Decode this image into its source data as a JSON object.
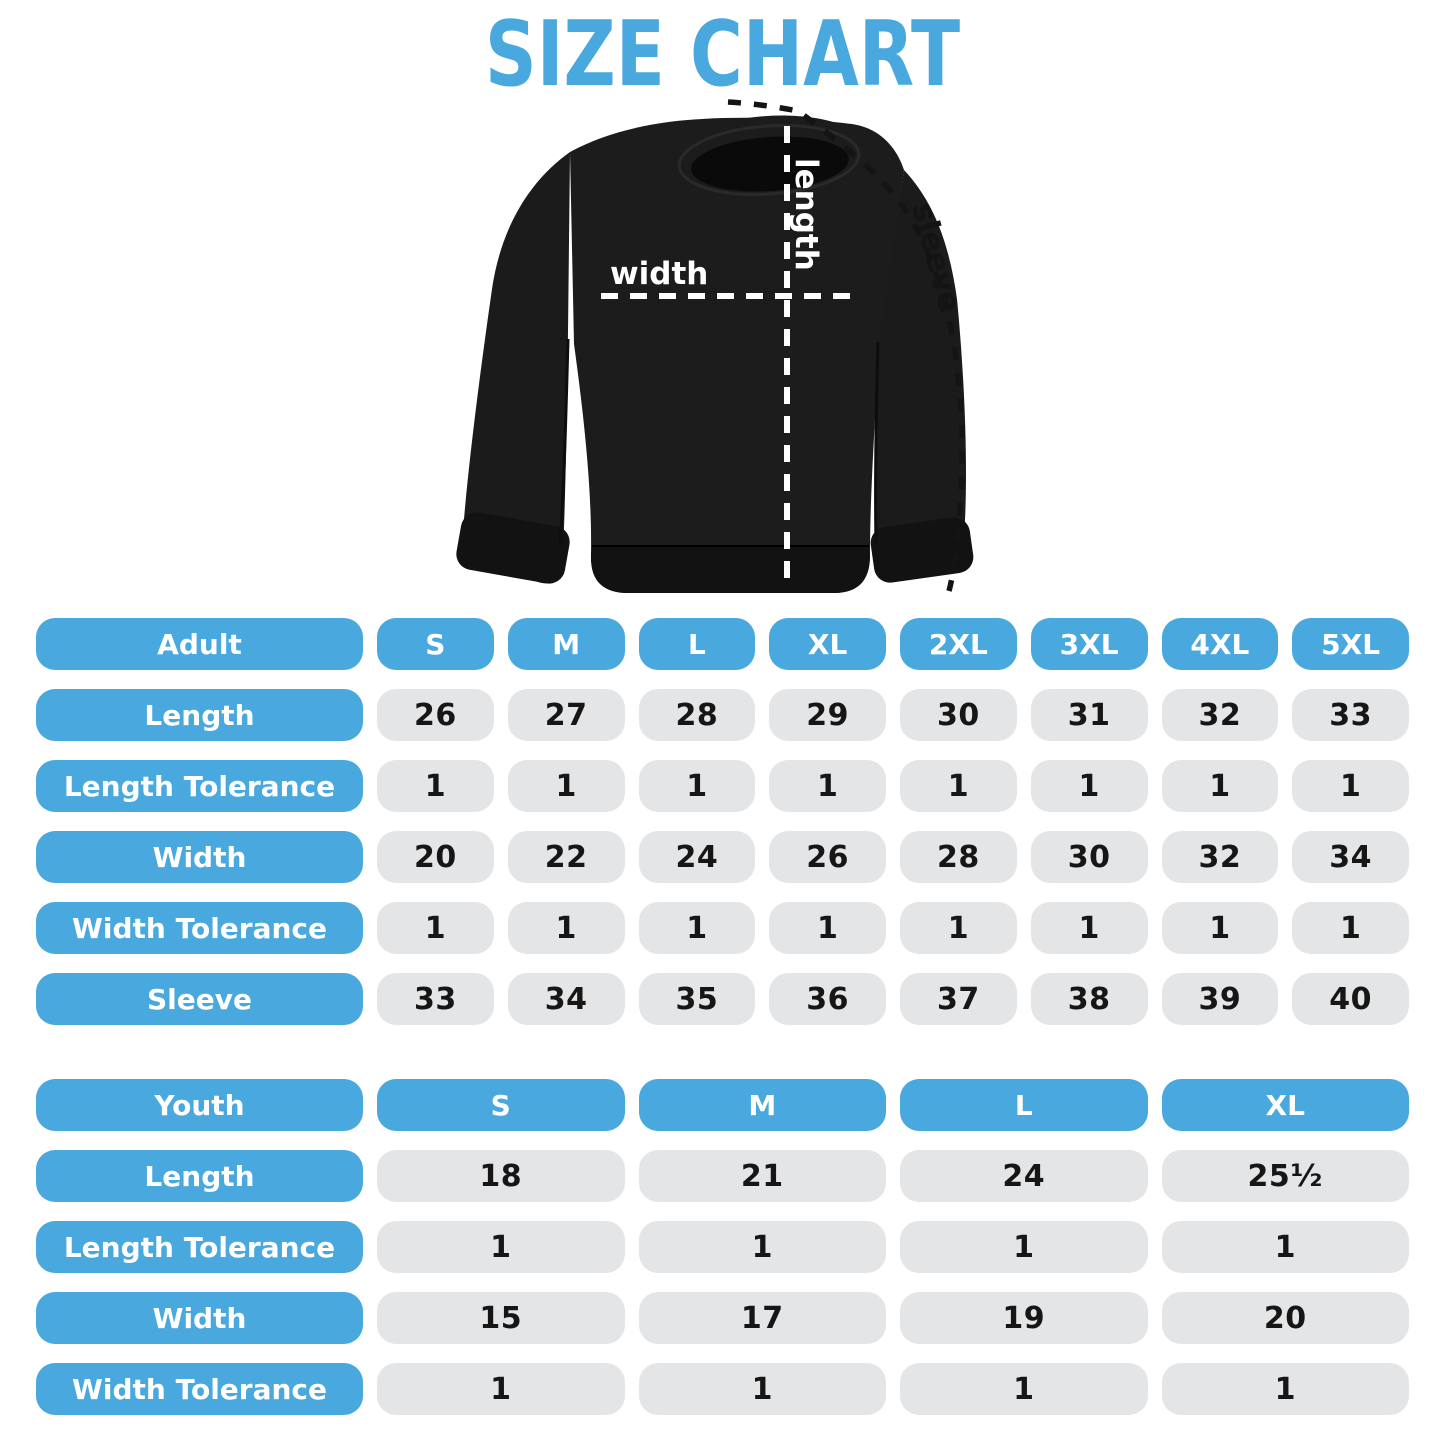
{
  "title": "SIZE CHART",
  "diagram": {
    "garment": "black-crewneck-sweatshirt",
    "width_label": "width",
    "length_label": "length",
    "sleeve_label": "sleeve"
  },
  "colors": {
    "accent_blue": "#49A8DD",
    "cell_gray": "#E4E5E7",
    "value_text": "#161616",
    "shirt_black": "#1b1b1b",
    "background": "#ffffff"
  },
  "adult_table": {
    "header": {
      "label": "Adult",
      "sizes": [
        "S",
        "M",
        "L",
        "XL",
        "2XL",
        "3XL",
        "4XL",
        "5XL"
      ]
    },
    "rows": [
      {
        "label": "Length",
        "values": [
          "26",
          "27",
          "28",
          "29",
          "30",
          "31",
          "32",
          "33"
        ]
      },
      {
        "label": "Length Tolerance",
        "values": [
          "1",
          "1",
          "1",
          "1",
          "1",
          "1",
          "1",
          "1"
        ]
      },
      {
        "label": "Width",
        "values": [
          "20",
          "22",
          "24",
          "26",
          "28",
          "30",
          "32",
          "34"
        ]
      },
      {
        "label": "Width Tolerance",
        "values": [
          "1",
          "1",
          "1",
          "1",
          "1",
          "1",
          "1",
          "1"
        ]
      },
      {
        "label": "Sleeve",
        "values": [
          "33",
          "34",
          "35",
          "36",
          "37",
          "38",
          "39",
          "40"
        ]
      }
    ]
  },
  "youth_table": {
    "header": {
      "label": "Youth",
      "sizes": [
        "S",
        "M",
        "L",
        "XL"
      ]
    },
    "rows": [
      {
        "label": "Length",
        "values": [
          "18",
          "21",
          "24",
          "25¹⁄₂"
        ]
      },
      {
        "label": "Length Tolerance",
        "values": [
          "1",
          "1",
          "1",
          "1"
        ]
      },
      {
        "label": "Width",
        "values": [
          "15",
          "17",
          "19",
          "20"
        ]
      },
      {
        "label": "Width Tolerance",
        "values": [
          "1",
          "1",
          "1",
          "1"
        ]
      }
    ]
  },
  "chart_data": [
    {
      "type": "table",
      "title": "Adult",
      "columns": [
        "Adult",
        "S",
        "M",
        "L",
        "XL",
        "2XL",
        "3XL",
        "4XL",
        "5XL"
      ],
      "rows": [
        [
          "Length",
          26,
          27,
          28,
          29,
          30,
          31,
          32,
          33
        ],
        [
          "Length Tolerance",
          1,
          1,
          1,
          1,
          1,
          1,
          1,
          1
        ],
        [
          "Width",
          20,
          22,
          24,
          26,
          28,
          30,
          32,
          34
        ],
        [
          "Width Tolerance",
          1,
          1,
          1,
          1,
          1,
          1,
          1,
          1
        ],
        [
          "Sleeve",
          33,
          34,
          35,
          36,
          37,
          38,
          39,
          40
        ]
      ]
    },
    {
      "type": "table",
      "title": "Youth",
      "columns": [
        "Youth",
        "S",
        "M",
        "L",
        "XL"
      ],
      "rows": [
        [
          "Length",
          18,
          21,
          24,
          "25 1/2"
        ],
        [
          "Length Tolerance",
          1,
          1,
          1,
          1
        ],
        [
          "Width",
          15,
          17,
          19,
          20
        ],
        [
          "Width Tolerance",
          1,
          1,
          1,
          1
        ]
      ]
    }
  ]
}
